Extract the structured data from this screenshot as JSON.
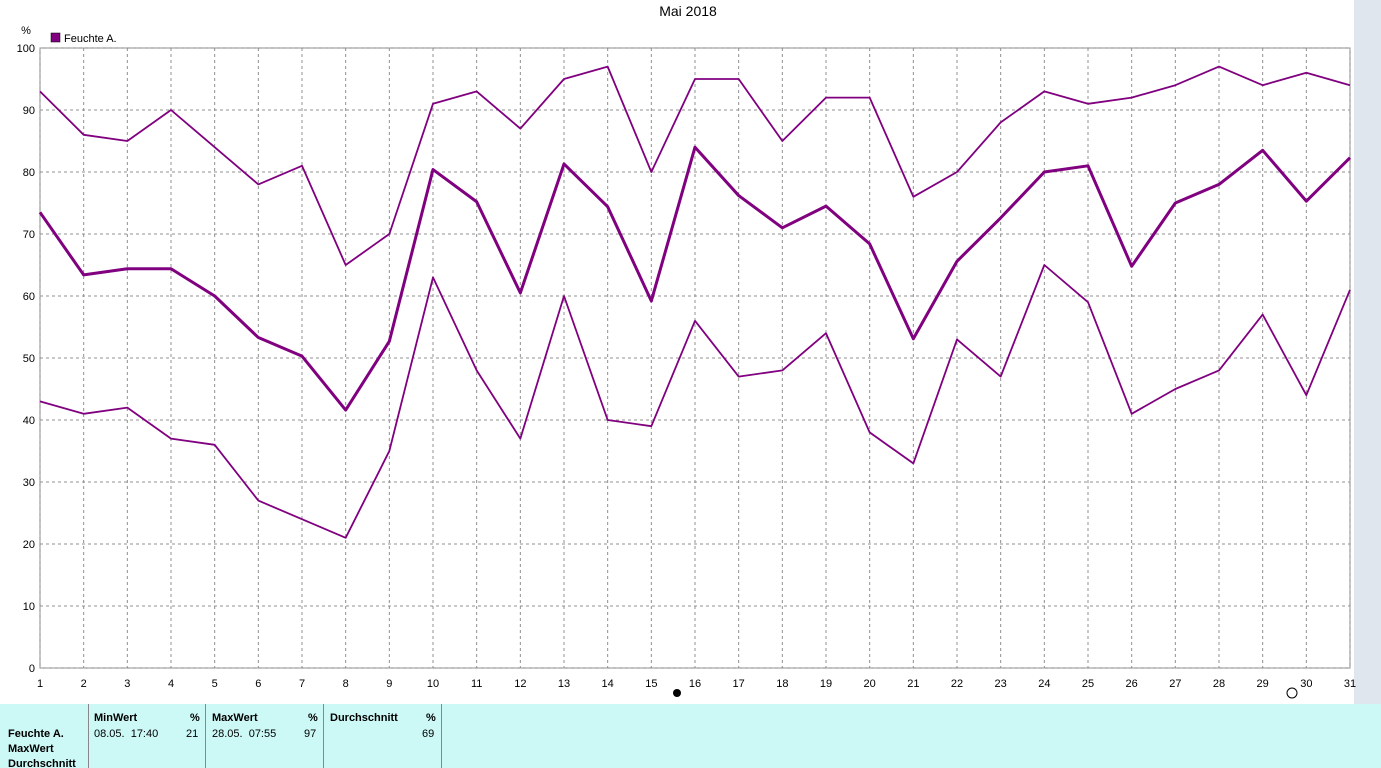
{
  "chart_data": {
    "type": "line",
    "title": "Mai 2018",
    "y_unit": "%",
    "x": [
      1,
      2,
      3,
      4,
      5,
      6,
      7,
      8,
      9,
      10,
      11,
      12,
      13,
      14,
      15,
      16,
      17,
      18,
      19,
      20,
      21,
      22,
      23,
      24,
      25,
      26,
      27,
      28,
      29,
      30,
      31
    ],
    "series": [
      {
        "name": "Feuchte A.",
        "color": "#800080",
        "max": [
          93,
          86,
          85,
          90,
          84,
          78,
          81,
          65,
          70,
          91,
          93,
          87,
          95,
          97,
          80,
          95,
          95,
          85,
          92,
          92,
          76,
          80,
          88,
          93,
          91,
          92,
          94,
          97,
          94,
          96,
          94
        ],
        "mean": [
          73.5,
          63.4,
          64.4,
          64.4,
          60,
          53.3,
          50.3,
          41.6,
          52.7,
          80.4,
          75.2,
          60.5,
          81.3,
          74.4,
          59.2,
          84,
          76.2,
          71,
          74.5,
          68.4,
          53.1,
          65.6,
          72.6,
          80,
          81,
          64.8,
          75,
          78,
          83.5,
          75.3,
          82.3
        ],
        "min": [
          43,
          41,
          42,
          37,
          36,
          27,
          24,
          21,
          35,
          63,
          48,
          37,
          60,
          40,
          39,
          56,
          47,
          48,
          54,
          38,
          33,
          53,
          47,
          65,
          59,
          41,
          45,
          48,
          57,
          44,
          61
        ]
      }
    ],
    "xlim": [
      1,
      31
    ],
    "xticks": [
      1,
      2,
      3,
      4,
      5,
      6,
      7,
      8,
      9,
      10,
      11,
      12,
      13,
      14,
      15,
      16,
      17,
      18,
      19,
      20,
      21,
      22,
      23,
      24,
      25,
      26,
      27,
      28,
      29,
      30,
      31
    ],
    "ylim": [
      0,
      100
    ],
    "yticks": [
      0,
      10,
      20,
      30,
      40,
      50,
      60,
      70,
      80,
      90,
      100
    ],
    "grid": true
  },
  "stats": {
    "row_labels": [
      "Feuchte A.",
      "MaxWert",
      "Durchschnitt"
    ],
    "columns": [
      {
        "header": "MinWert",
        "unit": "%",
        "time": "08.05.  17:40",
        "value": 21
      },
      {
        "header": "MaxWert",
        "unit": "%",
        "time": "28.05.  07:55",
        "value": 97
      },
      {
        "header": "Durchschnitt",
        "unit": "%",
        "value": 69
      }
    ]
  }
}
